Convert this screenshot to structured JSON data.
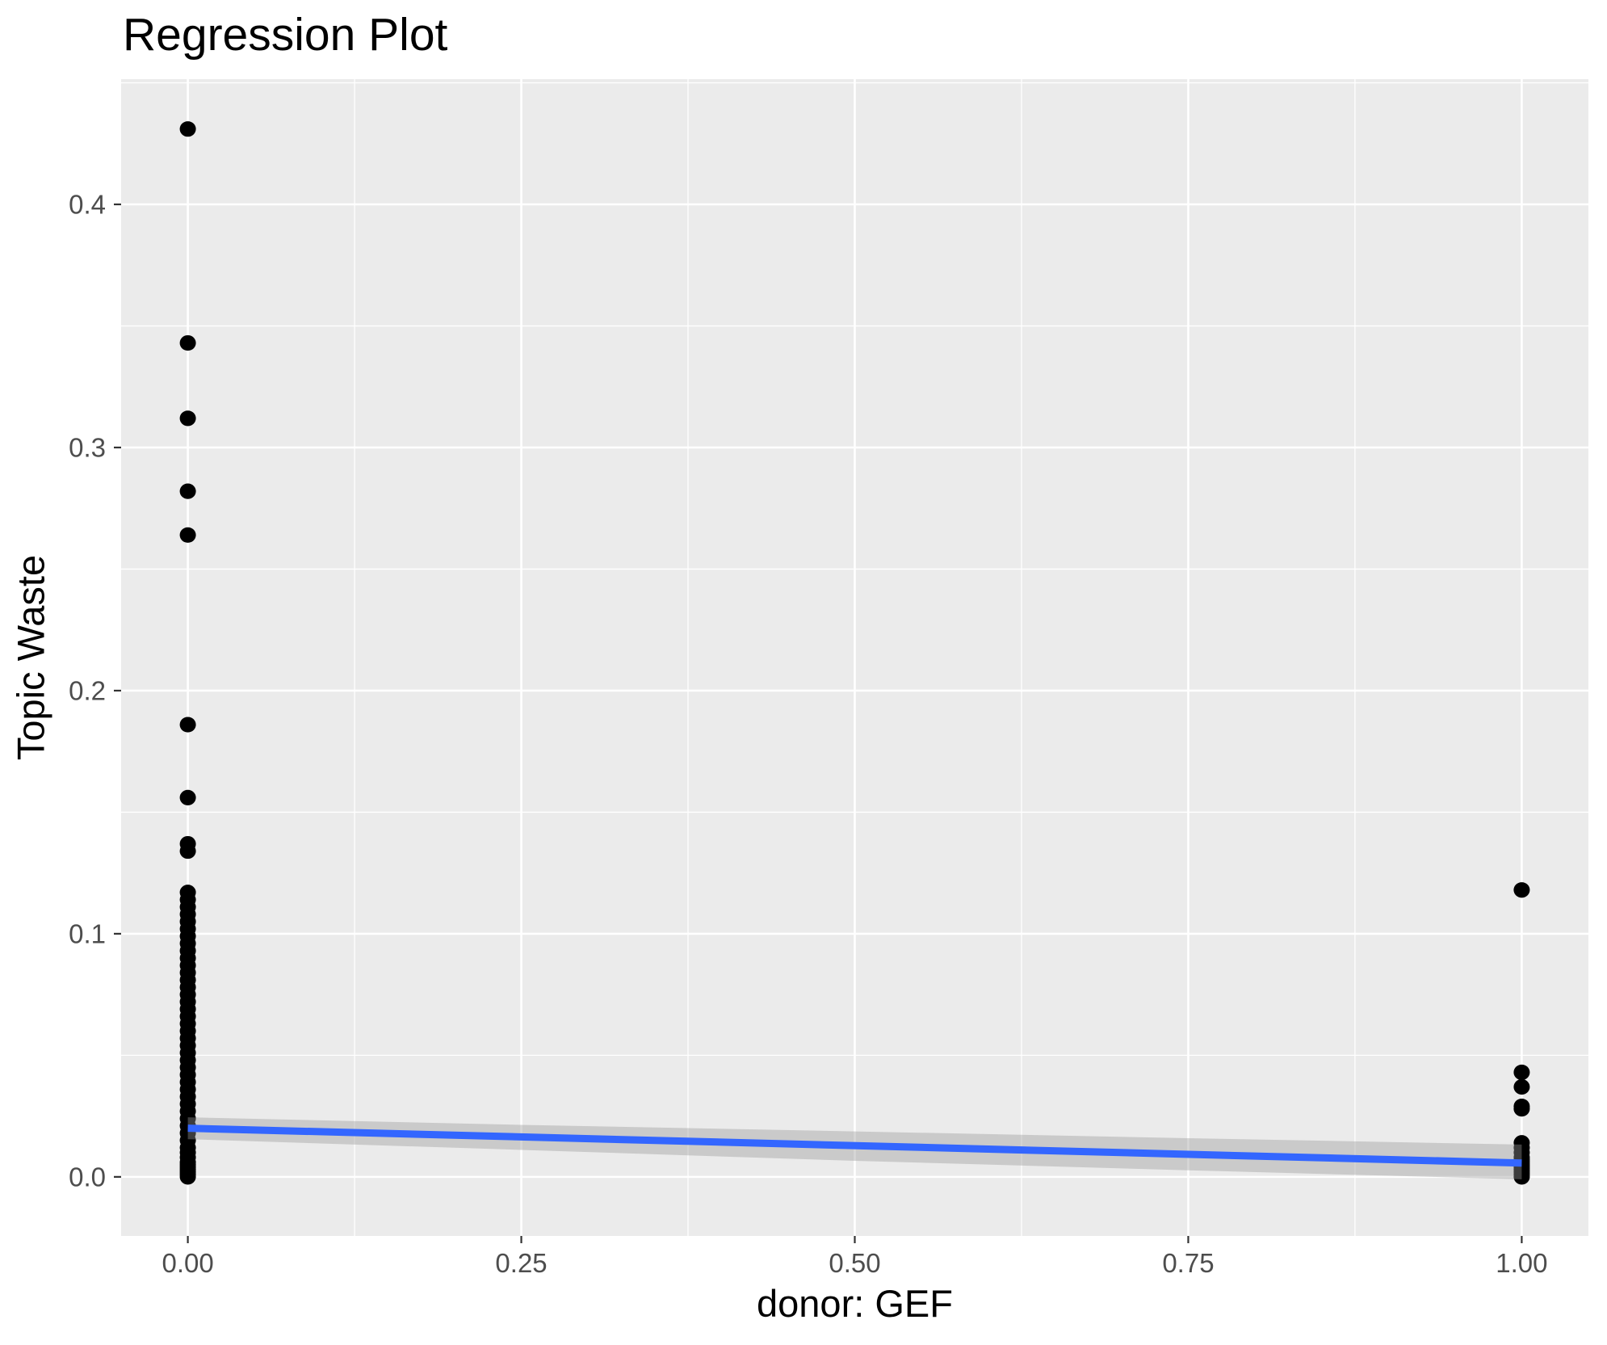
{
  "title": "Regression Plot",
  "chart_data": {
    "type": "scatter",
    "title": "Regression Plot",
    "xlabel": "donor: GEF",
    "ylabel": "Topic Waste",
    "legend": "none",
    "grid": "major-and-minor, white on gray panel",
    "xlim": [
      -0.05,
      1.05
    ],
    "ylim": [
      -0.0243,
      0.4515
    ],
    "x_ticks": [
      0.0,
      0.25,
      0.5,
      0.75,
      1.0
    ],
    "x_tick_labels": [
      "0.00",
      "0.25",
      "0.50",
      "0.75",
      "1.00"
    ],
    "y_ticks": [
      0.0,
      0.1,
      0.2,
      0.3,
      0.4
    ],
    "y_tick_labels": [
      "0.0",
      "0.1",
      "0.2",
      "0.3",
      "0.4"
    ],
    "series": [
      {
        "name": "donor-GEF-0",
        "x": 0,
        "values": [
          0.431,
          0.343,
          0.312,
          0.282,
          0.264,
          0.186,
          0.156,
          0.137,
          0.134,
          0.117,
          0.114,
          0.111,
          0.108,
          0.105,
          0.102,
          0.099,
          0.096,
          0.093,
          0.09,
          0.087,
          0.084,
          0.081,
          0.078,
          0.075,
          0.072,
          0.069,
          0.066,
          0.063,
          0.06,
          0.057,
          0.054,
          0.051,
          0.048,
          0.045,
          0.042,
          0.039,
          0.036,
          0.033,
          0.03,
          0.027,
          0.024,
          0.021,
          0.018,
          0.015,
          0.012,
          0.01,
          0.008,
          0.006,
          0.005,
          0.004,
          0.003,
          0.002,
          0.001,
          0.0
        ]
      },
      {
        "name": "donor-GEF-1",
        "x": 1,
        "values": [
          0.118,
          0.043,
          0.037,
          0.029,
          0.028,
          0.014,
          0.012,
          0.01,
          0.008,
          0.007,
          0.006,
          0.005,
          0.004,
          0.003,
          0.002,
          0.001,
          0.0
        ]
      }
    ],
    "regression_line": {
      "x": [
        0,
        1
      ],
      "y": [
        0.02,
        0.0057
      ],
      "color": "#3366FF",
      "width": 9
    },
    "confidence_band": {
      "x": [
        0,
        0.25,
        0.5,
        0.75,
        1
      ],
      "upper": [
        0.0245,
        0.0214,
        0.0187,
        0.0159,
        0.0133
      ],
      "lower": [
        0.0155,
        0.0111,
        0.0066,
        0.0027,
        -0.001
      ],
      "color": "#999999",
      "opacity": 0.4
    },
    "point_style": {
      "color": "#000000",
      "radius": 10
    },
    "colors": {
      "panel_bg": "#EBEBEB",
      "grid_major": "#FFFFFF",
      "grid_minor": "#FFFFFF",
      "tick_label": "#4D4D4D",
      "tick_mark": "#333333",
      "title": "#000000",
      "axis_title": "#000000",
      "page_bg": "#FFFFFF"
    }
  }
}
